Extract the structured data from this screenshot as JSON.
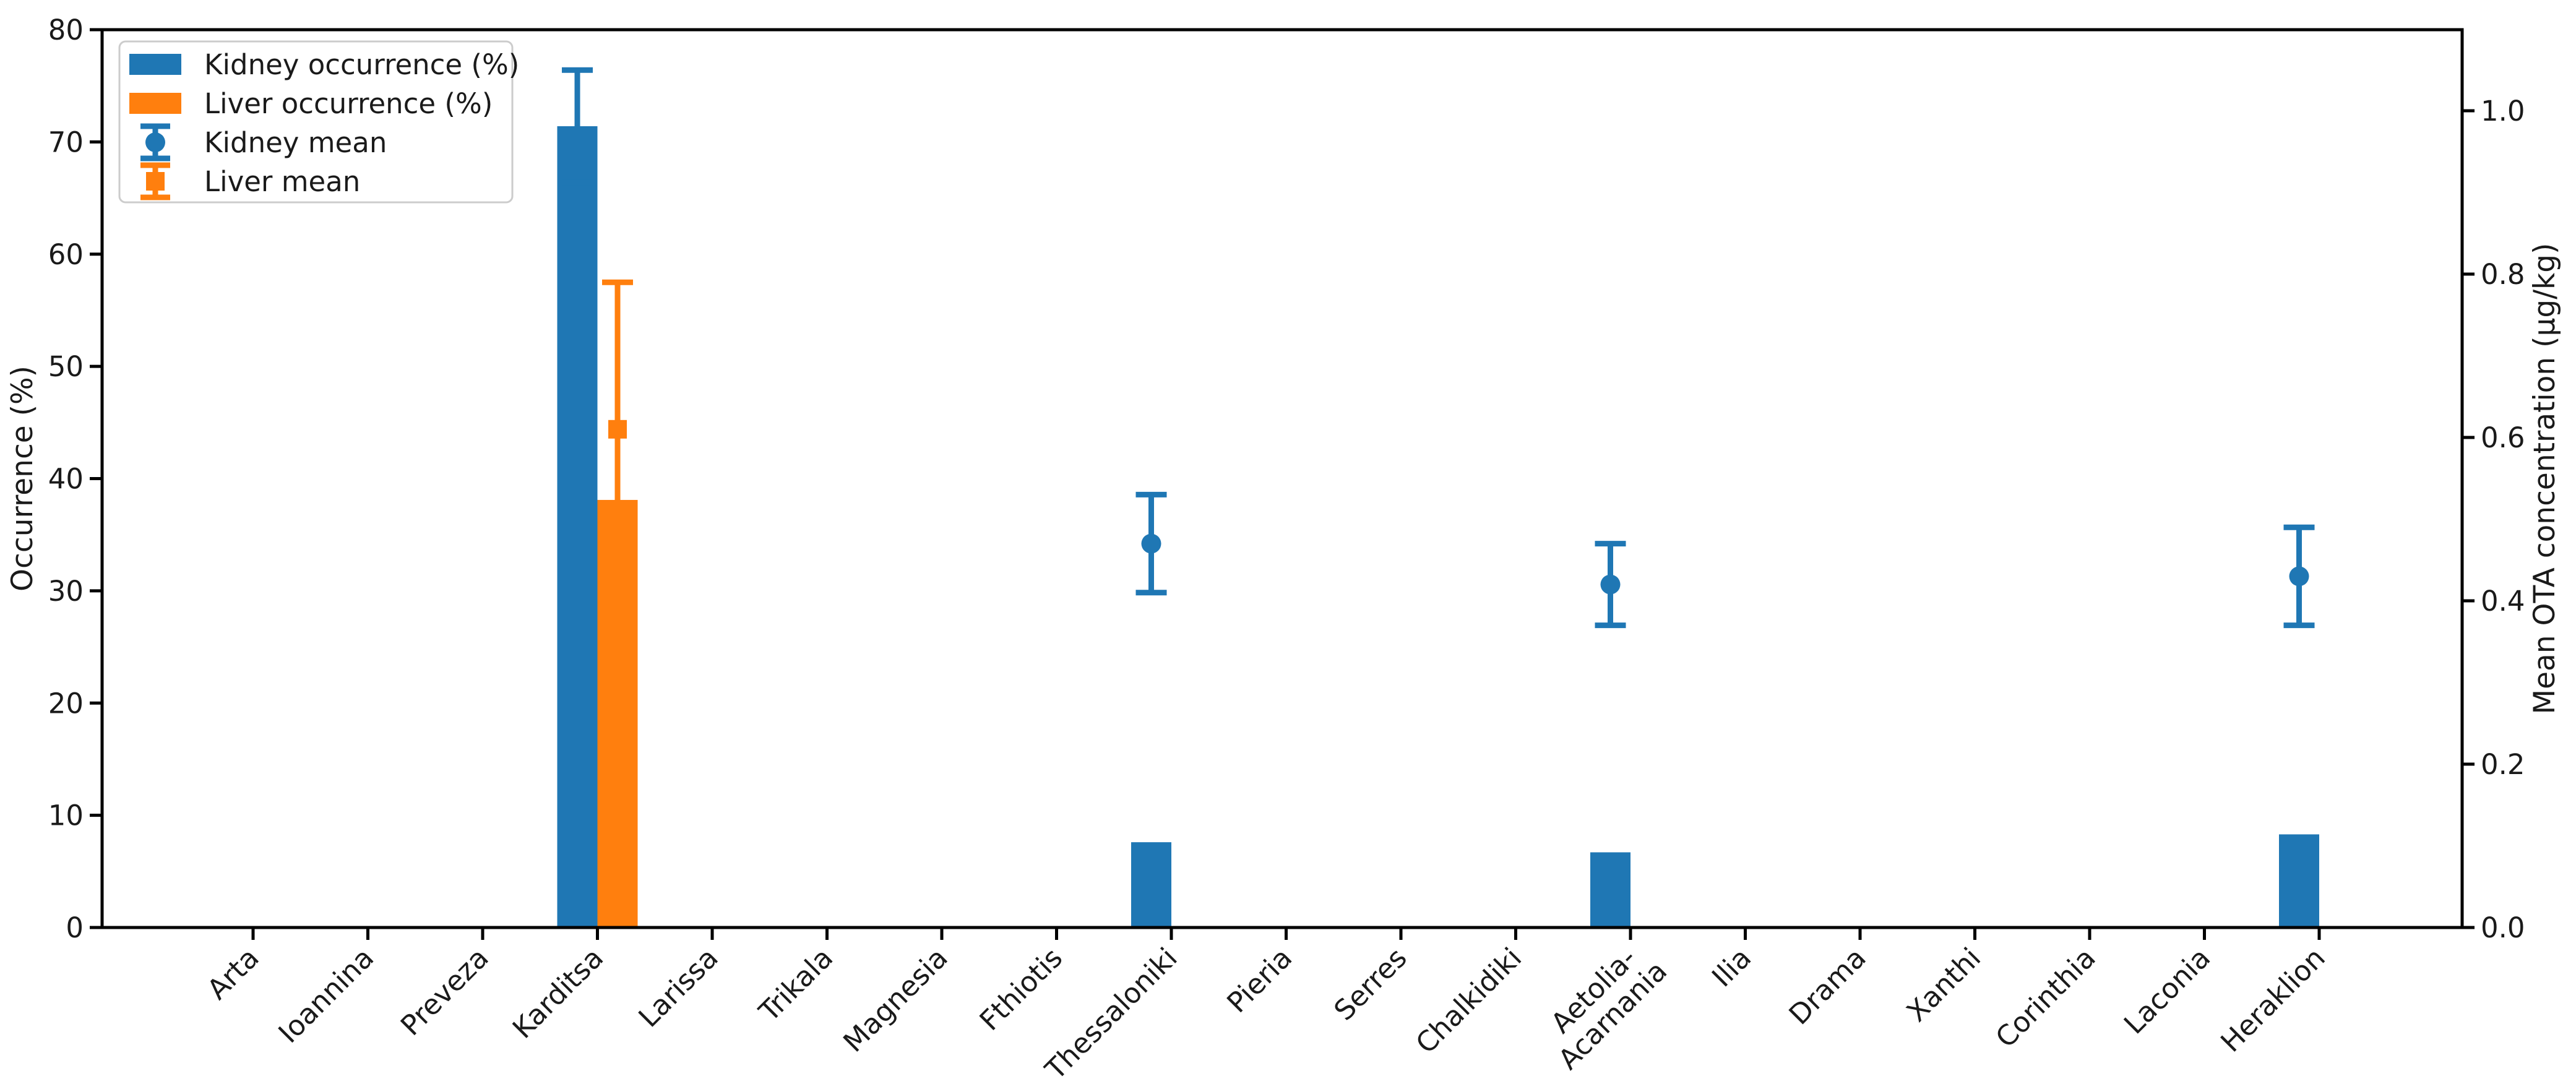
{
  "figure": {
    "background": "#ffffff",
    "title": ""
  },
  "chart_data": {
    "type": "bar",
    "categories": [
      "Arta",
      "Ioannina",
      "Preveza",
      "Karditsa",
      "Larissa",
      "Trikala",
      "Magnesia",
      "Fthiotis",
      "Thessaloniki",
      "Pieria",
      "Serres",
      "Chalkidiki",
      "Aetolia-\nAcarnania",
      "Ilia",
      "Drama",
      "Xanthi",
      "Corinthia",
      "Laconia",
      "Heraklion"
    ],
    "series": [
      {
        "name": "Kidney occurrence (%)",
        "type": "bar",
        "axis": "left",
        "color": "#1f77b4",
        "values": [
          0,
          0,
          0,
          71.4,
          0,
          0,
          0,
          0,
          7.6,
          0,
          0,
          0,
          6.7,
          0,
          0,
          0,
          0,
          0,
          8.3
        ],
        "errors": [
          null,
          null,
          null,
          5.0,
          null,
          null,
          null,
          null,
          null,
          null,
          null,
          null,
          null,
          null,
          null,
          null,
          null,
          null,
          null
        ]
      },
      {
        "name": "Liver occurrence (%)",
        "type": "bar",
        "axis": "left",
        "color": "#ff7f0e",
        "values": [
          0,
          0,
          0,
          38.1,
          0,
          0,
          0,
          0,
          0,
          0,
          0,
          0,
          0,
          0,
          0,
          0,
          0,
          0,
          0
        ],
        "errors": [
          null,
          null,
          null,
          null,
          null,
          null,
          null,
          null,
          null,
          null,
          null,
          null,
          null,
          null,
          null,
          null,
          null,
          null,
          null
        ]
      },
      {
        "name": "Kidney mean",
        "type": "point",
        "marker": "circle",
        "axis": "right",
        "color": "#1f77b4",
        "values": [
          null,
          null,
          null,
          null,
          null,
          null,
          null,
          null,
          0.47,
          null,
          null,
          null,
          0.42,
          null,
          null,
          null,
          null,
          null,
          0.43
        ],
        "errors": [
          null,
          null,
          null,
          null,
          null,
          null,
          null,
          null,
          0.06,
          null,
          null,
          null,
          0.05,
          null,
          null,
          null,
          null,
          null,
          0.06
        ]
      },
      {
        "name": "Liver mean",
        "type": "point",
        "marker": "square",
        "axis": "right",
        "color": "#ff7f0e",
        "values": [
          null,
          null,
          null,
          0.61,
          null,
          null,
          null,
          null,
          null,
          null,
          null,
          null,
          null,
          null,
          null,
          null,
          null,
          null,
          null
        ],
        "errors": [
          null,
          null,
          null,
          0.18,
          null,
          null,
          null,
          null,
          null,
          null,
          null,
          null,
          null,
          null,
          null,
          null,
          null,
          null,
          null
        ]
      }
    ],
    "title": "",
    "xlabel": "",
    "ylabel": "Occurrence (%)",
    "ylabel_right": "Mean OTA concentration (µg/kg)",
    "ylim_left": [
      0,
      80
    ],
    "ylim_right": [
      0,
      1.1
    ],
    "left_ticks": [
      "0",
      "10",
      "20",
      "30",
      "40",
      "50",
      "60",
      "70",
      "80"
    ],
    "right_ticks": [
      "0.0",
      "0.2",
      "0.4",
      "0.6",
      "0.8",
      "1.0"
    ],
    "grid": false,
    "legend_position": "upper left",
    "legend_entries": [
      "Kidney occurrence (%)",
      "Liver occurrence (%)",
      "Kidney mean",
      "Liver mean"
    ]
  }
}
